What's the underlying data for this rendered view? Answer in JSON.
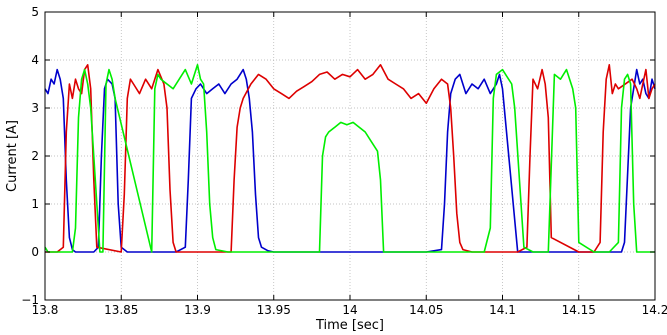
{
  "chart_data": {
    "type": "line",
    "title": "",
    "xlabel": "Time [sec]",
    "ylabel": "Current [A]",
    "xlim": [
      13.8,
      14.2
    ],
    "ylim": [
      -1,
      5
    ],
    "x_ticks": [
      13.8,
      13.85,
      13.9,
      13.95,
      14.0,
      14.05,
      14.1,
      14.15,
      14.2
    ],
    "x_tick_labels": [
      "13.8",
      "13.85",
      "13.9",
      "13.95",
      "14",
      "14.05",
      "14.1",
      "14.15",
      "14.2"
    ],
    "y_ticks": [
      -1,
      0,
      1,
      2,
      3,
      4,
      5
    ],
    "y_tick_labels": [
      "−1",
      "0",
      "1",
      "2",
      "3",
      "4",
      "5"
    ],
    "grid": true,
    "legend": "none",
    "series": [
      {
        "color": "#0000cc",
        "x": [
          13.8,
          13.802,
          13.804,
          13.806,
          13.808,
          13.81,
          13.812,
          13.814,
          13.816,
          13.818,
          13.82,
          13.826,
          13.832,
          13.835,
          13.837,
          13.839,
          13.841,
          13.844,
          13.846,
          13.848,
          13.85,
          13.854,
          13.858,
          13.862,
          13.868,
          13.874,
          13.88,
          13.886,
          13.892,
          13.894,
          13.896,
          13.899,
          13.902,
          13.906,
          13.91,
          13.914,
          13.918,
          13.922,
          13.926,
          13.93,
          13.932,
          13.934,
          13.936,
          13.938,
          13.94,
          13.942,
          13.946,
          13.95,
          14.0,
          14.05,
          14.06,
          14.062,
          14.064,
          14.066,
          14.069,
          14.072,
          14.076,
          14.08,
          14.084,
          14.088,
          14.092,
          14.096,
          14.098,
          14.1,
          14.11,
          14.12,
          14.13,
          14.14,
          14.15,
          14.16,
          14.17,
          14.178,
          14.18,
          14.184,
          14.188,
          14.19,
          14.192,
          14.194,
          14.196,
          14.198,
          14.2
        ],
        "y": [
          3.4,
          3.3,
          3.6,
          3.5,
          3.8,
          3.6,
          3.2,
          1.5,
          0.3,
          0.05,
          0.0,
          0.0,
          0.0,
          0.1,
          2.0,
          3.4,
          3.6,
          3.5,
          3.2,
          1.0,
          0.1,
          0.0,
          0.0,
          0.0,
          0.0,
          0.0,
          0.0,
          0.0,
          0.1,
          1.5,
          3.2,
          3.4,
          3.5,
          3.3,
          3.4,
          3.5,
          3.3,
          3.5,
          3.6,
          3.8,
          3.6,
          3.2,
          2.5,
          1.2,
          0.3,
          0.1,
          0.03,
          0.0,
          0.0,
          0.0,
          0.05,
          1.0,
          2.5,
          3.3,
          3.6,
          3.7,
          3.3,
          3.5,
          3.4,
          3.6,
          3.3,
          3.5,
          3.7,
          3.4,
          0.0,
          0.0,
          0.0,
          0.0,
          0.0,
          0.0,
          0.0,
          0.0,
          0.2,
          3.0,
          3.8,
          3.5,
          3.6,
          3.3,
          3.2,
          3.6,
          3.4
        ]
      },
      {
        "color": "#dd0000",
        "x": [
          13.8,
          13.808,
          13.812,
          13.814,
          13.816,
          13.818,
          13.82,
          13.822,
          13.824,
          13.826,
          13.828,
          13.83,
          13.832,
          13.834,
          13.85,
          13.852,
          13.854,
          13.856,
          13.858,
          13.862,
          13.866,
          13.87,
          13.874,
          13.878,
          13.88,
          13.882,
          13.884,
          13.886,
          13.9,
          13.922,
          13.924,
          13.926,
          13.928,
          13.93,
          13.935,
          13.94,
          13.945,
          13.95,
          13.955,
          13.96,
          13.965,
          13.97,
          13.975,
          13.98,
          13.985,
          13.99,
          13.995,
          14.0,
          14.005,
          14.01,
          14.015,
          14.02,
          14.025,
          14.03,
          14.035,
          14.04,
          14.045,
          14.05,
          14.055,
          14.06,
          14.064,
          14.066,
          14.068,
          14.07,
          14.072,
          14.074,
          14.08,
          14.1,
          14.11,
          14.116,
          14.118,
          14.12,
          14.123,
          14.126,
          14.128,
          14.13,
          14.132,
          14.15,
          14.16,
          14.164,
          14.166,
          14.168,
          14.17,
          14.172,
          14.174,
          14.176,
          14.185,
          14.188,
          14.19,
          14.192,
          14.194,
          14.196,
          14.198,
          14.2
        ],
        "y": [
          0.0,
          0.0,
          0.1,
          2.5,
          3.5,
          3.2,
          3.6,
          3.4,
          3.3,
          3.8,
          3.9,
          3.4,
          1.5,
          0.1,
          0.0,
          1.2,
          3.2,
          3.6,
          3.5,
          3.3,
          3.6,
          3.4,
          3.8,
          3.5,
          3.0,
          1.3,
          0.2,
          0.0,
          0.0,
          0.0,
          1.5,
          2.6,
          3.0,
          3.2,
          3.5,
          3.7,
          3.6,
          3.4,
          3.3,
          3.2,
          3.35,
          3.45,
          3.55,
          3.7,
          3.75,
          3.6,
          3.7,
          3.65,
          3.8,
          3.6,
          3.7,
          3.9,
          3.6,
          3.5,
          3.4,
          3.2,
          3.3,
          3.1,
          3.4,
          3.6,
          3.5,
          3.0,
          2.0,
          0.8,
          0.2,
          0.05,
          0.0,
          0.0,
          0.0,
          0.1,
          2.0,
          3.6,
          3.4,
          3.8,
          3.5,
          2.8,
          0.3,
          0.0,
          0.0,
          0.2,
          2.5,
          3.6,
          3.9,
          3.3,
          3.5,
          3.4,
          3.6,
          3.4,
          3.2,
          3.5,
          3.8,
          3.2,
          3.4,
          3.5
        ]
      },
      {
        "color": "#00ee00",
        "x": [
          13.8,
          13.802,
          13.804,
          13.808,
          13.812,
          13.818,
          13.82,
          13.822,
          13.824,
          13.826,
          13.828,
          13.83,
          13.836,
          13.838,
          13.84,
          13.842,
          13.844,
          13.846,
          13.87,
          13.872,
          13.874,
          13.876,
          13.88,
          13.884,
          13.888,
          13.892,
          13.896,
          13.9,
          13.902,
          13.904,
          13.906,
          13.908,
          13.91,
          13.912,
          13.92,
          13.98,
          13.982,
          13.984,
          13.986,
          13.99,
          13.994,
          13.998,
          14.002,
          14.006,
          14.01,
          14.014,
          14.018,
          14.02,
          14.022,
          14.08,
          14.088,
          14.092,
          14.094,
          14.096,
          14.1,
          14.104,
          14.106,
          14.108,
          14.114,
          14.12,
          14.13,
          14.134,
          14.138,
          14.142,
          14.146,
          14.148,
          14.15,
          14.16,
          14.17,
          14.176,
          14.178,
          14.18,
          14.182,
          14.184,
          14.186,
          14.188,
          14.19,
          14.192,
          14.2
        ],
        "y": [
          0.1,
          0.0,
          0.0,
          0.0,
          0.0,
          0.0,
          0.5,
          2.8,
          3.6,
          3.8,
          3.5,
          3.0,
          0.0,
          0.0,
          3.5,
          3.8,
          3.6,
          3.2,
          0.0,
          3.4,
          3.7,
          3.6,
          3.5,
          3.4,
          3.6,
          3.8,
          3.5,
          3.9,
          3.6,
          3.5,
          2.5,
          1.0,
          0.3,
          0.05,
          0.0,
          0.0,
          2.0,
          2.4,
          2.5,
          2.6,
          2.7,
          2.65,
          2.7,
          2.6,
          2.5,
          2.3,
          2.1,
          1.5,
          0.0,
          0.0,
          0.0,
          0.5,
          3.2,
          3.7,
          3.8,
          3.6,
          3.5,
          3.0,
          0.1,
          0.0,
          0.0,
          3.7,
          3.6,
          3.8,
          3.4,
          3.0,
          0.2,
          0.0,
          0.0,
          0.2,
          3.0,
          3.6,
          3.7,
          3.5,
          1.0,
          0.0,
          0.0,
          0.0,
          0.0
        ]
      }
    ]
  }
}
